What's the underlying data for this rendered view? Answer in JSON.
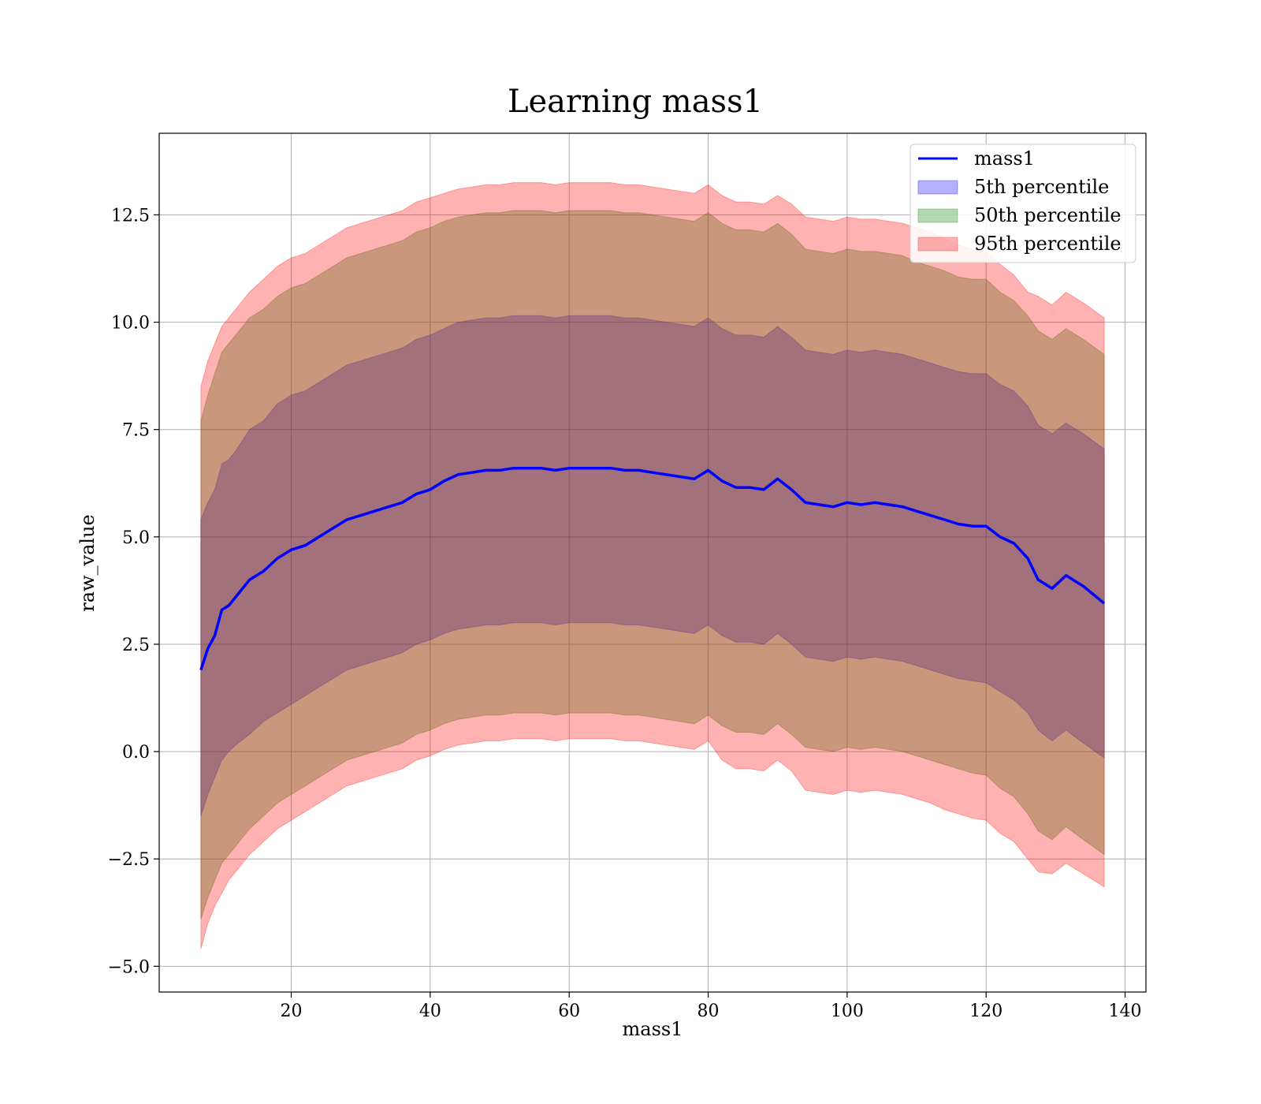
{
  "chart_data": {
    "type": "area",
    "title": "Learning mass1",
    "xlabel": "mass1",
    "ylabel": "raw_value",
    "xlim": [
      1,
      143
    ],
    "ylim": [
      -5.6,
      14.4
    ],
    "x_ticks": [
      20,
      40,
      60,
      80,
      100,
      120,
      140
    ],
    "x_tick_labels": [
      "20",
      "40",
      "60",
      "80",
      "100",
      "120",
      "140"
    ],
    "y_ticks": [
      -5.0,
      -2.5,
      0.0,
      2.5,
      5.0,
      7.5,
      10.0,
      12.5
    ],
    "y_tick_labels": [
      "−5.0",
      "−2.5",
      "0.0",
      "2.5",
      "5.0",
      "7.5",
      "10.0",
      "12.5"
    ],
    "grid": true,
    "legend_position": "top-right",
    "x": [
      7,
      8,
      9,
      10,
      11,
      12,
      14,
      16,
      18,
      20,
      22,
      24,
      26,
      28,
      30,
      32,
      34,
      36,
      38,
      40,
      42,
      44,
      46,
      48,
      50,
      52,
      54,
      56,
      58,
      60,
      62,
      64,
      66,
      68,
      70,
      72,
      74,
      76,
      78,
      80,
      82,
      84,
      86,
      88,
      90,
      92,
      94,
      96,
      98,
      100,
      102,
      104,
      106,
      108,
      110,
      112,
      114,
      116,
      118,
      120,
      122,
      124,
      126,
      127.5,
      129.5,
      131.5,
      134,
      137
    ],
    "series": [
      {
        "name": "mass1",
        "kind": "line",
        "color": "#0000ff",
        "values": [
          1.9,
          2.4,
          2.7,
          3.3,
          3.4,
          3.6,
          4.0,
          4.2,
          4.5,
          4.7,
          4.8,
          5.0,
          5.2,
          5.4,
          5.5,
          5.6,
          5.7,
          5.8,
          6.0,
          6.1,
          6.3,
          6.45,
          6.5,
          6.55,
          6.55,
          6.6,
          6.6,
          6.6,
          6.55,
          6.6,
          6.6,
          6.6,
          6.6,
          6.55,
          6.55,
          6.5,
          6.45,
          6.4,
          6.35,
          6.55,
          6.3,
          6.15,
          6.15,
          6.1,
          6.35,
          6.1,
          5.8,
          5.75,
          5.7,
          5.8,
          5.75,
          5.8,
          5.75,
          5.7,
          5.6,
          5.5,
          5.4,
          5.3,
          5.25,
          5.25,
          5.0,
          4.85,
          4.5,
          4.0,
          3.8,
          4.1,
          3.85,
          3.45
        ]
      },
      {
        "name": "5th percentile",
        "kind": "band",
        "color": "#0000ff",
        "lower": [
          -1.5,
          -1.0,
          -0.6,
          -0.2,
          0.0,
          0.15,
          0.4,
          0.7,
          0.9,
          1.1,
          1.3,
          1.5,
          1.7,
          1.9,
          2.0,
          2.1,
          2.2,
          2.3,
          2.5,
          2.6,
          2.75,
          2.85,
          2.9,
          2.95,
          2.95,
          3.0,
          3.0,
          3.0,
          2.95,
          3.0,
          3.0,
          3.0,
          3.0,
          2.95,
          2.95,
          2.9,
          2.85,
          2.8,
          2.75,
          2.95,
          2.7,
          2.55,
          2.55,
          2.5,
          2.75,
          2.5,
          2.2,
          2.15,
          2.1,
          2.2,
          2.15,
          2.2,
          2.15,
          2.1,
          2.0,
          1.9,
          1.8,
          1.7,
          1.65,
          1.6,
          1.4,
          1.2,
          0.9,
          0.5,
          0.25,
          0.5,
          0.2,
          -0.15
        ],
        "upper": [
          5.4,
          5.8,
          6.1,
          6.7,
          6.8,
          7.0,
          7.5,
          7.7,
          8.1,
          8.3,
          8.4,
          8.6,
          8.8,
          9.0,
          9.1,
          9.2,
          9.3,
          9.4,
          9.6,
          9.7,
          9.85,
          10.0,
          10.05,
          10.1,
          10.1,
          10.15,
          10.15,
          10.15,
          10.1,
          10.15,
          10.15,
          10.15,
          10.15,
          10.1,
          10.1,
          10.05,
          10.0,
          9.95,
          9.9,
          10.1,
          9.85,
          9.7,
          9.7,
          9.65,
          9.9,
          9.65,
          9.35,
          9.3,
          9.25,
          9.35,
          9.3,
          9.35,
          9.3,
          9.25,
          9.15,
          9.05,
          8.95,
          8.85,
          8.8,
          8.8,
          8.55,
          8.4,
          8.05,
          7.6,
          7.4,
          7.65,
          7.4,
          7.05
        ]
      },
      {
        "name": "50th percentile",
        "kind": "band",
        "color": "#008000",
        "lower": [
          -3.9,
          -3.4,
          -3.0,
          -2.6,
          -2.4,
          -2.2,
          -1.8,
          -1.5,
          -1.2,
          -1.0,
          -0.8,
          -0.6,
          -0.4,
          -0.2,
          -0.1,
          0.0,
          0.1,
          0.2,
          0.4,
          0.5,
          0.65,
          0.75,
          0.8,
          0.85,
          0.85,
          0.9,
          0.9,
          0.9,
          0.85,
          0.9,
          0.9,
          0.9,
          0.9,
          0.85,
          0.85,
          0.8,
          0.75,
          0.7,
          0.65,
          0.85,
          0.6,
          0.45,
          0.45,
          0.4,
          0.65,
          0.4,
          0.1,
          0.05,
          0.0,
          0.1,
          0.05,
          0.1,
          0.05,
          0.0,
          -0.1,
          -0.2,
          -0.3,
          -0.4,
          -0.5,
          -0.55,
          -0.85,
          -1.05,
          -1.45,
          -1.85,
          -2.05,
          -1.75,
          -2.05,
          -2.4
        ],
        "upper": [
          7.7,
          8.3,
          8.8,
          9.3,
          9.5,
          9.7,
          10.1,
          10.3,
          10.6,
          10.8,
          10.9,
          11.1,
          11.3,
          11.5,
          11.6,
          11.7,
          11.8,
          11.9,
          12.1,
          12.2,
          12.35,
          12.45,
          12.5,
          12.55,
          12.55,
          12.6,
          12.6,
          12.6,
          12.55,
          12.6,
          12.6,
          12.6,
          12.6,
          12.55,
          12.55,
          12.5,
          12.45,
          12.4,
          12.35,
          12.55,
          12.3,
          12.15,
          12.15,
          12.1,
          12.3,
          12.05,
          11.7,
          11.65,
          11.6,
          11.7,
          11.65,
          11.65,
          11.6,
          11.55,
          11.4,
          11.3,
          11.2,
          11.05,
          11.0,
          11.0,
          10.7,
          10.5,
          10.15,
          9.8,
          9.6,
          9.85,
          9.6,
          9.25
        ]
      },
      {
        "name": "95th percentile",
        "kind": "band",
        "color": "#ff0000",
        "lower": [
          -4.6,
          -4.0,
          -3.6,
          -3.3,
          -3.0,
          -2.8,
          -2.4,
          -2.1,
          -1.8,
          -1.6,
          -1.4,
          -1.2,
          -1.0,
          -0.8,
          -0.7,
          -0.6,
          -0.5,
          -0.4,
          -0.2,
          -0.1,
          0.05,
          0.15,
          0.2,
          0.25,
          0.25,
          0.3,
          0.3,
          0.3,
          0.25,
          0.3,
          0.3,
          0.3,
          0.3,
          0.25,
          0.25,
          0.2,
          0.15,
          0.1,
          0.05,
          0.25,
          -0.2,
          -0.4,
          -0.4,
          -0.45,
          -0.2,
          -0.45,
          -0.9,
          -0.95,
          -1.0,
          -0.9,
          -0.95,
          -0.9,
          -0.95,
          -1.0,
          -1.1,
          -1.2,
          -1.35,
          -1.45,
          -1.55,
          -1.6,
          -1.9,
          -2.1,
          -2.5,
          -2.8,
          -2.85,
          -2.6,
          -2.85,
          -3.15
        ],
        "upper": [
          8.5,
          9.1,
          9.5,
          9.9,
          10.1,
          10.3,
          10.7,
          11.0,
          11.3,
          11.5,
          11.6,
          11.8,
          12.0,
          12.2,
          12.3,
          12.4,
          12.5,
          12.6,
          12.8,
          12.9,
          13.0,
          13.1,
          13.15,
          13.2,
          13.2,
          13.25,
          13.25,
          13.25,
          13.2,
          13.25,
          13.25,
          13.25,
          13.25,
          13.2,
          13.2,
          13.15,
          13.1,
          13.05,
          13.0,
          13.2,
          12.95,
          12.8,
          12.8,
          12.75,
          12.95,
          12.75,
          12.45,
          12.4,
          12.35,
          12.45,
          12.4,
          12.4,
          12.35,
          12.3,
          12.2,
          12.1,
          11.95,
          11.8,
          11.7,
          11.65,
          11.35,
          11.1,
          10.7,
          10.6,
          10.4,
          10.7,
          10.45,
          10.1
        ]
      }
    ]
  }
}
